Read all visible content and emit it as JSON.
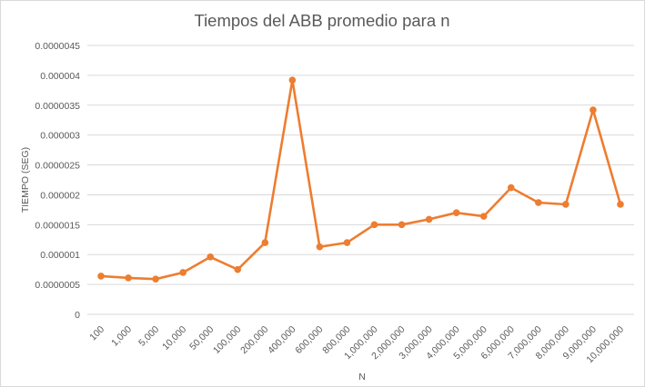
{
  "chart_data": {
    "type": "line",
    "title": "Tiempos del ABB promedio para n",
    "xlabel": "N",
    "ylabel": "TIEMPO (SEG)",
    "ylim": [
      0,
      4.5e-06
    ],
    "yticks": [
      "0",
      "0.0000005",
      "0.000001",
      "0.0000015",
      "0.000002",
      "0.0000025",
      "0.000003",
      "0.0000035",
      "0.000004",
      "0.0000045"
    ],
    "grid": true,
    "legend": "none",
    "color": "#ed7d31",
    "categories": [
      "100",
      "1,000",
      "5,000",
      "10,000",
      "50,000",
      "100,000",
      "200,000",
      "400,000",
      "600,000",
      "800,000",
      "1,000,000",
      "2,000,000",
      "3,000,000",
      "4,000,000",
      "5,000,000",
      "6,000,000",
      "7,000,000",
      "8,000,000",
      "9,000,000",
      "10,000,000"
    ],
    "values": [
      6.4e-07,
      6.1e-07,
      5.9e-07,
      7e-07,
      9.6e-07,
      7.5e-07,
      1.2e-06,
      3.92e-06,
      1.13e-06,
      1.2e-06,
      1.5e-06,
      1.5e-06,
      1.59e-06,
      1.7e-06,
      1.64e-06,
      2.12e-06,
      1.87e-06,
      1.84e-06,
      3.42e-06,
      1.84e-06
    ]
  }
}
